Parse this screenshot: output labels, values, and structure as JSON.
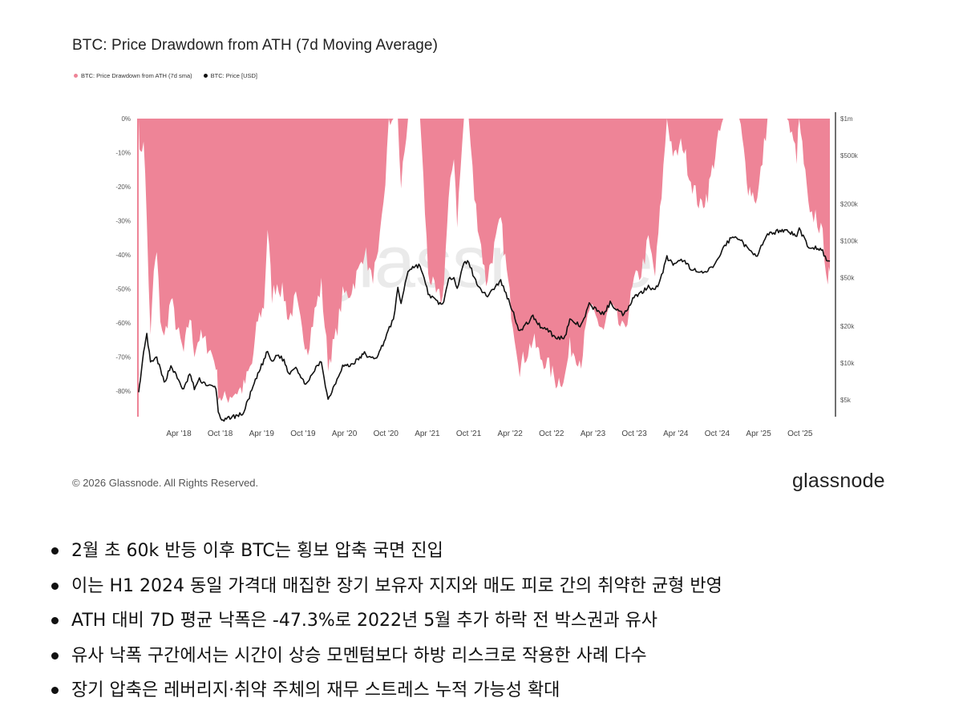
{
  "colors": {
    "drawdown": "#ee8497",
    "price": "#111111",
    "watermark": "#d9d9d9",
    "axis": "#555555"
  },
  "chart_data": {
    "type": "area",
    "title": "BTC: Price Drawdown from ATH (7d Moving Average)",
    "legend": [
      {
        "name": "BTC: Price Drawdown from ATH (7d sma)",
        "color": "#ee8497"
      },
      {
        "name": "BTC: Price [USD]",
        "color": "#111111"
      }
    ],
    "watermark": "glassnode",
    "x_tick_labels": [
      "Apr '18",
      "Oct '18",
      "Apr '19",
      "Oct '19",
      "Apr '20",
      "Oct '20",
      "Apr '21",
      "Oct '21",
      "Apr '22",
      "Oct '22",
      "Apr '23",
      "Oct '23",
      "Apr '24",
      "Oct '24",
      "Apr '25",
      "Oct '25"
    ],
    "x_range": [
      "2017-12-17",
      "2026-02-15"
    ],
    "left_axis": {
      "ticks": [
        "0%",
        "-10%",
        "-20%",
        "-30%",
        "-40%",
        "-50%",
        "-60%",
        "-70%",
        "-80%"
      ],
      "range": [
        -88,
        0
      ],
      "unit": "%"
    },
    "right_axis": {
      "scale": "log",
      "ticks": [
        "$1m",
        "$500k",
        "$200k",
        "$100k",
        "$50k",
        "$20k",
        "$10k",
        "$5k"
      ],
      "tick_values": [
        1000000,
        500000,
        200000,
        100000,
        50000,
        20000,
        10000,
        5000
      ],
      "range": [
        3500,
        1000000
      ]
    },
    "grid": false,
    "legend_position": "top-left",
    "series": [
      {
        "name": "BTC: Price Drawdown from ATH (7d sma)",
        "axis": "left",
        "points": [
          [
            "2017-12-17",
            0
          ],
          [
            "2017-12-24",
            -12
          ],
          [
            "2018-01-07",
            -5
          ],
          [
            "2018-01-21",
            -30
          ],
          [
            "2018-02-06",
            -65
          ],
          [
            "2018-02-20",
            -45
          ],
          [
            "2018-03-05",
            -40
          ],
          [
            "2018-03-20",
            -58
          ],
          [
            "2018-04-06",
            -65
          ],
          [
            "2018-05-05",
            -53
          ],
          [
            "2018-06-01",
            -62
          ],
          [
            "2018-06-29",
            -69
          ],
          [
            "2018-07-25",
            -58
          ],
          [
            "2018-08-14",
            -68
          ],
          [
            "2018-09-05",
            -64
          ],
          [
            "2018-10-15",
            -67
          ],
          [
            "2018-11-15",
            -72
          ],
          [
            "2018-11-25",
            -80
          ],
          [
            "2018-12-15",
            -83
          ],
          [
            "2019-01-15",
            -81
          ],
          [
            "2019-02-15",
            -80
          ],
          [
            "2019-03-15",
            -79
          ],
          [
            "2019-04-03",
            -75
          ],
          [
            "2019-04-20",
            -72
          ],
          [
            "2019-05-15",
            -59
          ],
          [
            "2019-06-10",
            -55
          ],
          [
            "2019-06-26",
            -32
          ],
          [
            "2019-07-15",
            -52
          ],
          [
            "2019-08-06",
            -48
          ],
          [
            "2019-09-05",
            -52
          ],
          [
            "2019-09-25",
            -59
          ],
          [
            "2019-10-26",
            -53
          ],
          [
            "2019-11-22",
            -63
          ],
          [
            "2019-12-17",
            -67
          ],
          [
            "2020-01-15",
            -57
          ],
          [
            "2020-02-13",
            -49
          ],
          [
            "2020-03-13",
            -72
          ],
          [
            "2020-04-15",
            -64
          ],
          [
            "2020-05-15",
            -52
          ],
          [
            "2020-06-15",
            -51
          ],
          [
            "2020-07-28",
            -44
          ],
          [
            "2020-08-17",
            -38
          ],
          [
            "2020-09-15",
            -47
          ],
          [
            "2020-10-15",
            -42
          ],
          [
            "2020-11-15",
            -18
          ],
          [
            "2020-11-30",
            -2
          ],
          [
            "2020-12-20",
            0
          ],
          [
            "2021-01-08",
            0
          ],
          [
            "2021-01-22",
            -20
          ],
          [
            "2021-02-21",
            0
          ],
          [
            "2021-03-13",
            0
          ],
          [
            "2021-04-14",
            0
          ],
          [
            "2021-05-19",
            -45
          ],
          [
            "2021-06-22",
            -52
          ],
          [
            "2021-07-20",
            -53
          ],
          [
            "2021-08-15",
            -25
          ],
          [
            "2021-09-07",
            -10
          ],
          [
            "2021-09-21",
            -30
          ],
          [
            "2021-10-20",
            0
          ],
          [
            "2021-11-10",
            0
          ],
          [
            "2021-12-04",
            -23
          ],
          [
            "2022-01-24",
            -48
          ],
          [
            "2022-03-28",
            -30
          ],
          [
            "2022-05-12",
            -56
          ],
          [
            "2022-06-18",
            -73
          ],
          [
            "2022-08-14",
            -65
          ],
          [
            "2022-09-15",
            -70
          ],
          [
            "2022-10-15",
            -72
          ],
          [
            "2022-11-21",
            -77
          ],
          [
            "2022-12-30",
            -76
          ],
          [
            "2023-01-20",
            -67
          ],
          [
            "2023-03-10",
            -71
          ],
          [
            "2023-04-14",
            -56
          ],
          [
            "2023-06-15",
            -62
          ],
          [
            "2023-07-13",
            -55
          ],
          [
            "2023-08-25",
            -61
          ],
          [
            "2023-09-11",
            -63
          ],
          [
            "2023-10-24",
            -48
          ],
          [
            "2023-11-24",
            -45
          ],
          [
            "2023-12-25",
            -36
          ],
          [
            "2024-01-23",
            -46
          ],
          [
            "2024-02-20",
            -22
          ],
          [
            "2024-03-14",
            0
          ],
          [
            "2024-04-15",
            -12
          ],
          [
            "2024-05-20",
            -7
          ],
          [
            "2024-06-25",
            -18
          ],
          [
            "2024-08-05",
            -26
          ],
          [
            "2024-09-06",
            -22
          ],
          [
            "2024-10-15",
            -8
          ],
          [
            "2024-11-12",
            0
          ],
          [
            "2024-12-17",
            0
          ],
          [
            "2025-01-20",
            0
          ],
          [
            "2025-02-28",
            -20
          ],
          [
            "2025-04-08",
            -24
          ],
          [
            "2025-05-22",
            0
          ],
          [
            "2025-07-14",
            0
          ],
          [
            "2025-08-14",
            0
          ],
          [
            "2025-09-25",
            -11
          ],
          [
            "2025-10-06",
            0
          ],
          [
            "2025-11-21",
            -30
          ],
          [
            "2025-12-15",
            -28
          ],
          [
            "2026-01-15",
            -35
          ],
          [
            "2026-02-06",
            -47.3
          ],
          [
            "2026-02-15",
            -45
          ]
        ]
      },
      {
        "name": "BTC: Price [USD]",
        "axis": "right",
        "points": [
          [
            "2017-12-17",
            6000
          ],
          [
            "2017-12-24",
            7000
          ],
          [
            "2018-01-07",
            12000
          ],
          [
            "2018-01-21",
            17000
          ],
          [
            "2018-02-06",
            10000
          ],
          [
            "2018-03-05",
            11000
          ],
          [
            "2018-04-06",
            6900
          ],
          [
            "2018-05-05",
            9500
          ],
          [
            "2018-06-29",
            6000
          ],
          [
            "2018-07-25",
            8200
          ],
          [
            "2018-08-14",
            6200
          ],
          [
            "2018-09-05",
            7300
          ],
          [
            "2018-10-15",
            6500
          ],
          [
            "2018-11-15",
            6300
          ],
          [
            "2018-11-25",
            4000
          ],
          [
            "2018-12-15",
            3300
          ],
          [
            "2019-01-15",
            3600
          ],
          [
            "2019-02-15",
            3700
          ],
          [
            "2019-03-15",
            3900
          ],
          [
            "2019-04-03",
            5000
          ],
          [
            "2019-05-15",
            8000
          ],
          [
            "2019-06-26",
            12500
          ],
          [
            "2019-07-15",
            10000
          ],
          [
            "2019-08-06",
            11800
          ],
          [
            "2019-09-05",
            10500
          ],
          [
            "2019-09-25",
            8200
          ],
          [
            "2019-10-26",
            9500
          ],
          [
            "2019-11-22",
            7200
          ],
          [
            "2019-12-17",
            6800
          ],
          [
            "2020-01-15",
            8800
          ],
          [
            "2020-02-13",
            10300
          ],
          [
            "2020-03-13",
            5000
          ],
          [
            "2020-04-15",
            7000
          ],
          [
            "2020-05-15",
            9500
          ],
          [
            "2020-06-15",
            9500
          ],
          [
            "2020-07-28",
            11000
          ],
          [
            "2020-08-17",
            12000
          ],
          [
            "2020-09-15",
            10800
          ],
          [
            "2020-10-15",
            11500
          ],
          [
            "2020-11-15",
            16000
          ],
          [
            "2020-12-20",
            23000
          ],
          [
            "2021-01-08",
            40000
          ],
          [
            "2021-01-22",
            31000
          ],
          [
            "2021-02-21",
            57000
          ],
          [
            "2021-03-13",
            61000
          ],
          [
            "2021-04-14",
            63000
          ],
          [
            "2021-05-19",
            37000
          ],
          [
            "2021-06-22",
            32000
          ],
          [
            "2021-07-20",
            30000
          ],
          [
            "2021-08-15",
            47000
          ],
          [
            "2021-09-07",
            52000
          ],
          [
            "2021-09-21",
            41000
          ],
          [
            "2021-10-20",
            65000
          ],
          [
            "2021-11-10",
            68000
          ],
          [
            "2021-12-04",
            49000
          ],
          [
            "2022-01-24",
            35000
          ],
          [
            "2022-03-28",
            47000
          ],
          [
            "2022-05-12",
            29000
          ],
          [
            "2022-06-18",
            18000
          ],
          [
            "2022-08-14",
            24000
          ],
          [
            "2022-09-15",
            20000
          ],
          [
            "2022-10-15",
            19000
          ],
          [
            "2022-11-21",
            15800
          ],
          [
            "2022-12-30",
            16500
          ],
          [
            "2023-01-20",
            22500
          ],
          [
            "2023-03-10",
            20000
          ],
          [
            "2023-04-14",
            30000
          ],
          [
            "2023-06-15",
            25000
          ],
          [
            "2023-07-13",
            31000
          ],
          [
            "2023-08-25",
            26000
          ],
          [
            "2023-09-11",
            25000
          ],
          [
            "2023-10-24",
            35000
          ],
          [
            "2023-11-24",
            37500
          ],
          [
            "2023-12-25",
            43000
          ],
          [
            "2024-01-23",
            39000
          ],
          [
            "2024-02-20",
            52000
          ],
          [
            "2024-03-14",
            73000
          ],
          [
            "2024-04-15",
            63000
          ],
          [
            "2024-05-20",
            70000
          ],
          [
            "2024-06-25",
            60000
          ],
          [
            "2024-08-05",
            54000
          ],
          [
            "2024-09-06",
            56000
          ],
          [
            "2024-10-15",
            67000
          ],
          [
            "2024-11-12",
            88000
          ],
          [
            "2024-12-17",
            106000
          ],
          [
            "2025-01-20",
            106000
          ],
          [
            "2025-02-28",
            84000
          ],
          [
            "2025-04-08",
            77000
          ],
          [
            "2025-05-22",
            111000
          ],
          [
            "2025-07-14",
            122000
          ],
          [
            "2025-08-14",
            122000
          ],
          [
            "2025-09-25",
            109000
          ],
          [
            "2025-10-06",
            125000
          ],
          [
            "2025-11-21",
            85000
          ],
          [
            "2025-12-15",
            88000
          ],
          [
            "2026-01-15",
            82000
          ],
          [
            "2026-02-06",
            66000
          ],
          [
            "2026-02-15",
            68000
          ]
        ]
      }
    ]
  },
  "footer": {
    "copyright": "© 2026 Glassnode. All Rights Reserved.",
    "brand": "glassnode"
  },
  "notes": [
    "2월 초 60k 반등 이후 BTC는 횡보 압축 국면 진입",
    "이는 H1 2024 동일 가격대 매집한 장기 보유자 지지와 매도 피로 간의 취약한 균형 반영",
    "ATH 대비 7D 평균 낙폭은 -47.3%로 2022년 5월 추가 하락 전 박스권과 유사",
    "유사 낙폭 구간에서는 시간이 상승 모멘텀보다 하방 리스크로 작용한 사례 다수",
    "장기 압축은 레버리지·취약 주체의 재무 스트레스 누적 가능성 확대"
  ]
}
